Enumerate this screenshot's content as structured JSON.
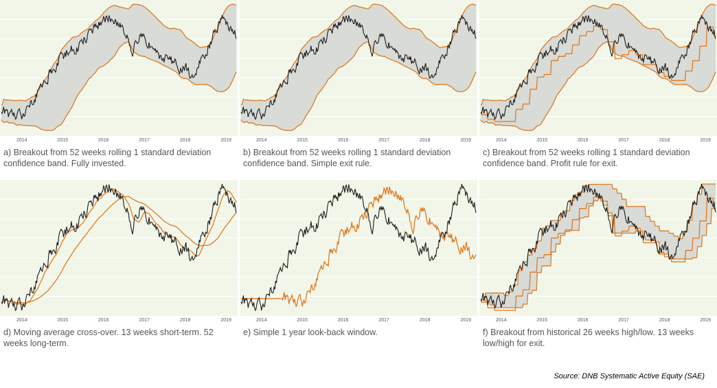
{
  "figure": {
    "source": "Source: DNB Systematic Active Equity (SAE)"
  },
  "colors": {
    "plot_bg": "#f1f6e9",
    "price": "#1a1a1a",
    "band": "#de7a22",
    "band_fill": "#d9dbd7",
    "gridline": "#ffffff",
    "tick": "#555555"
  },
  "chart_data": [
    {
      "type": "line",
      "panel": "a",
      "caption": "a) Breakout from 52 weeks rolling 1 standard deviation confidence band. Fully invested.",
      "x_ticks": [
        "2014",
        "2015",
        "2016",
        "2017",
        "2018",
        "2019"
      ],
      "series": [
        {
          "role": "price"
        },
        {
          "role": "upper_band"
        },
        {
          "role": "lower_band"
        }
      ],
      "band_fill": true,
      "grid": true
    },
    {
      "type": "line",
      "panel": "b",
      "caption": "b) Breakout from 52 weeks rolling 1 standard deviation confidence band. Simple exit rule.",
      "x_ticks": [
        "2014",
        "2015",
        "2016",
        "2017",
        "2018",
        "2019"
      ],
      "series": [
        {
          "role": "price"
        },
        {
          "role": "upper_band"
        },
        {
          "role": "lower_band"
        }
      ],
      "band_fill": true,
      "grid": true
    },
    {
      "type": "line",
      "panel": "c",
      "caption": "c) Breakout from 52 weeks rolling 1 standard deviation confidence band. Profit rule for exit.",
      "x_ticks": [
        "2014",
        "2015",
        "2016",
        "2017",
        "2018",
        "2019"
      ],
      "series": [
        {
          "role": "price"
        },
        {
          "role": "upper_band"
        },
        {
          "role": "lower_band"
        },
        {
          "role": "exit_level"
        }
      ],
      "band_fill": true,
      "grid": true
    },
    {
      "type": "line",
      "panel": "d",
      "caption": "d) Moving average cross-over. 13 weeks short-term. 52 weeks long-term.",
      "x_ticks": [
        "2014",
        "2015",
        "2016",
        "2017",
        "2018",
        "2019"
      ],
      "series": [
        {
          "role": "price"
        },
        {
          "role": "ma_13w"
        },
        {
          "role": "ma_52w"
        }
      ],
      "band_fill": false,
      "grid": true
    },
    {
      "type": "line",
      "panel": "e",
      "caption": "e) Simple 1 year look-back window.",
      "x_ticks": [
        "2014",
        "2015",
        "2016",
        "2017",
        "2018",
        "2019"
      ],
      "series": [
        {
          "role": "price"
        },
        {
          "role": "price_1y_ago"
        }
      ],
      "band_fill": false,
      "grid": true
    },
    {
      "type": "line",
      "panel": "f",
      "caption": "f) Breakout from historical 26 weeks high/low. 13 weeks low/high for exit.",
      "x_ticks": [
        "2014",
        "2015",
        "2016",
        "2017",
        "2018",
        "2019"
      ],
      "series": [
        {
          "role": "price"
        },
        {
          "role": "high_26w"
        },
        {
          "role": "low_26w"
        },
        {
          "role": "exit_13w"
        }
      ],
      "band_fill": true,
      "grid": true
    }
  ]
}
